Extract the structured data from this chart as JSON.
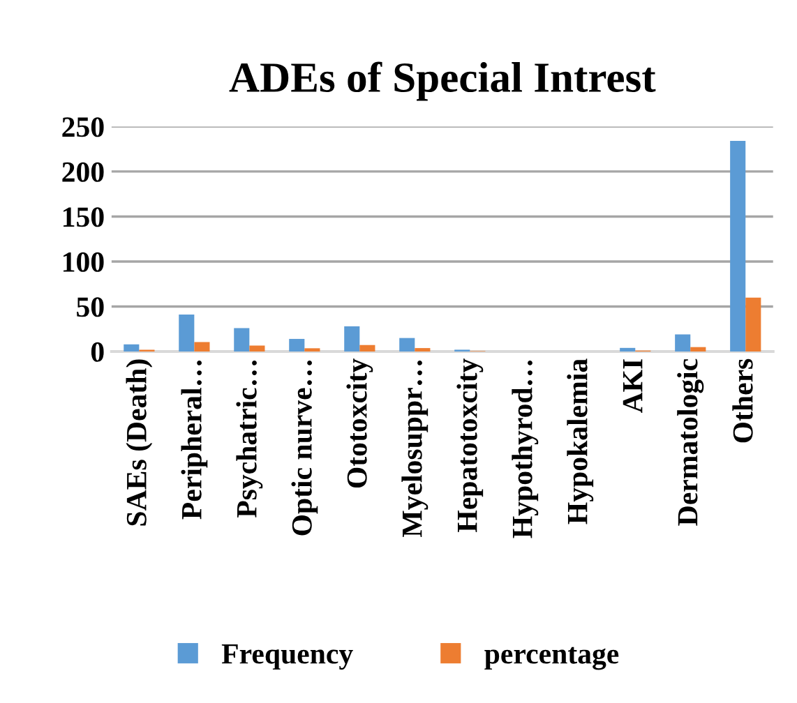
{
  "chart_data": {
    "type": "bar",
    "title": "ADEs of Special Intrest",
    "categories": [
      "SAEs (Death)",
      "Peripheral…",
      "Psychatric…",
      "Optic nurve…",
      "Ototoxcity",
      "Myelosuppr…",
      "Hepatotoxcity",
      "Hypothyrod…",
      "Hypokalemia",
      "AKI",
      "Dermatologic",
      "Others"
    ],
    "series": [
      {
        "name": "Frequency",
        "color": "#5b9bd5",
        "values": [
          8,
          41,
          26,
          14,
          28,
          15,
          2,
          0,
          0,
          4,
          19,
          234
        ]
      },
      {
        "name": "percentage",
        "color": "#ed7d31",
        "values": [
          2,
          10.5,
          6.6,
          3.6,
          7.2,
          3.8,
          0.5,
          0,
          0,
          1,
          4.9,
          59.8
        ]
      }
    ],
    "ylim": [
      0,
      250
    ],
    "yticks": [
      0,
      50,
      100,
      150,
      200,
      250
    ],
    "grid": "y",
    "legend": "bottom"
  }
}
